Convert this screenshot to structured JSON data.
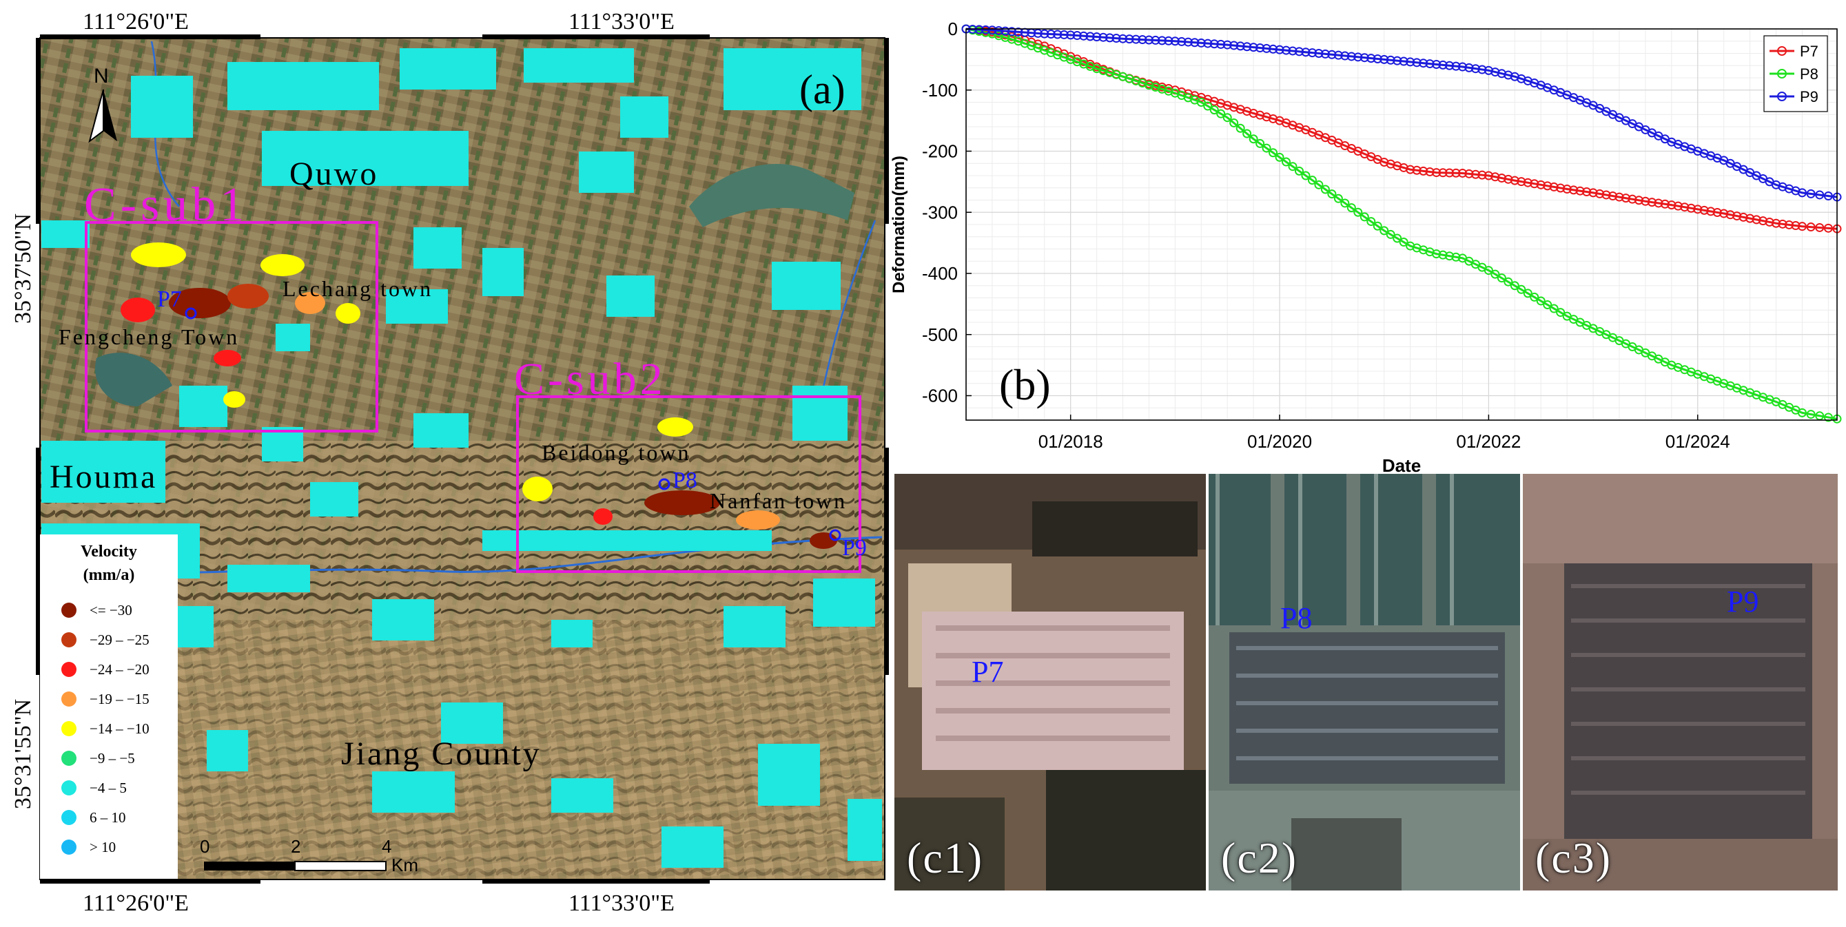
{
  "map": {
    "panel_label": "(a)",
    "coords": {
      "top_left": "111°26'0\"E",
      "top_right": "111°33'0\"E",
      "bottom_left": "111°26'0\"E",
      "bottom_right": "111°33'0\"E",
      "left_upper": "35°37'50\"N",
      "left_lower": "35°31'55\"N"
    },
    "place_names": {
      "quwo": "Quwo",
      "houma": "Houma",
      "jiang": "Jiang County",
      "lechang": "Lechang town",
      "fengcheng": "Fengcheng Town",
      "beidong": "Beidong town",
      "nanfan": "Nanfan town"
    },
    "boxes": {
      "sub1": "C-sub1",
      "sub2": "C-sub2"
    },
    "points": {
      "p7": "P7",
      "p8": "P8",
      "p9": "P9"
    },
    "north": "N",
    "scalebar": {
      "t0": "0",
      "t2": "2",
      "t4": "4",
      "unit": "Km"
    },
    "legend": {
      "title1": "Velocity",
      "title2": "(mm/a)",
      "items": [
        {
          "label": "<= −30",
          "color": "#8b1a00"
        },
        {
          "label": "−29 – −25",
          "color": "#c43a10"
        },
        {
          "label": "−24 – −20",
          "color": "#ff1a1a"
        },
        {
          "label": "−19 – −15",
          "color": "#ff9a3c"
        },
        {
          "label": "−14 – −10",
          "color": "#ffff00"
        },
        {
          "label": "−9 – −5",
          "color": "#22e07a"
        },
        {
          "label": "−4 – 5",
          "color": "#1ee8e0"
        },
        {
          "label": "6 – 10",
          "color": "#19d6f0"
        },
        {
          "label": "> 10",
          "color": "#18b8f5"
        }
      ]
    }
  },
  "chart_data": {
    "type": "line",
    "panel_label": "(b)",
    "xlabel": "Date",
    "ylabel": "Deformation(mm)",
    "ylim": [
      -640,
      0
    ],
    "yticks": [
      0,
      -100,
      -200,
      -300,
      -400,
      -500,
      -600
    ],
    "xlim": [
      "2017-01",
      "2025-05"
    ],
    "xticks": [
      "01/2018",
      "01/2020",
      "01/2022",
      "01/2024"
    ],
    "grid": true,
    "legend_position": "top-right",
    "x": [
      "2017-01",
      "2017-04",
      "2017-07",
      "2017-10",
      "2018-01",
      "2018-04",
      "2018-07",
      "2018-10",
      "2019-01",
      "2019-04",
      "2019-07",
      "2019-10",
      "2020-01",
      "2020-04",
      "2020-07",
      "2020-10",
      "2021-01",
      "2021-04",
      "2021-07",
      "2021-10",
      "2022-01",
      "2022-04",
      "2022-07",
      "2022-10",
      "2023-01",
      "2023-04",
      "2023-07",
      "2023-10",
      "2024-01",
      "2024-04",
      "2024-07",
      "2024-10",
      "2025-01",
      "2025-05"
    ],
    "series": [
      {
        "name": "P7",
        "color": "#e8191c",
        "values": [
          0,
          -5,
          -15,
          -28,
          -45,
          -62,
          -78,
          -90,
          -100,
          -112,
          -125,
          -138,
          -150,
          -165,
          -182,
          -200,
          -218,
          -230,
          -235,
          -236,
          -240,
          -248,
          -255,
          -262,
          -268,
          -275,
          -282,
          -288,
          -295,
          -302,
          -310,
          -318,
          -323,
          -327
        ]
      },
      {
        "name": "P8",
        "color": "#1ee01e",
        "values": [
          0,
          -8,
          -20,
          -35,
          -50,
          -65,
          -78,
          -92,
          -105,
          -120,
          -145,
          -180,
          -210,
          -240,
          -270,
          -300,
          -330,
          -355,
          -368,
          -375,
          -395,
          -420,
          -445,
          -470,
          -490,
          -510,
          -530,
          -550,
          -565,
          -580,
          -595,
          -610,
          -628,
          -638
        ]
      },
      {
        "name": "P9",
        "color": "#1c1cdc",
        "values": [
          0,
          -2,
          -5,
          -8,
          -10,
          -13,
          -16,
          -18,
          -20,
          -23,
          -26,
          -30,
          -34,
          -38,
          -42,
          -46,
          -50,
          -54,
          -58,
          -62,
          -68,
          -78,
          -92,
          -108,
          -125,
          -145,
          -165,
          -185,
          -200,
          -215,
          -235,
          -255,
          -268,
          -275
        ]
      }
    ]
  },
  "photos": [
    {
      "label": "(c1)",
      "point": "P7"
    },
    {
      "label": "(c2)",
      "point": "P8"
    },
    {
      "label": "(c3)",
      "point": "P9"
    }
  ]
}
